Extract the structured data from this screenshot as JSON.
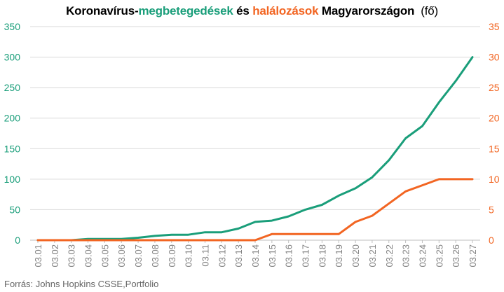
{
  "title": {
    "part1": "Koronavírus-",
    "part2": "megbetegedések",
    "part3": " és ",
    "part4": "halálozások",
    "part5": " Magyarországon",
    "unit": "(fő)"
  },
  "source": "Forrás: Johns Hopkins CSSE,Portfolio",
  "chart_data": {
    "type": "line",
    "categories": [
      "03.01",
      "03.02",
      "03.03",
      "03.04",
      "03.05",
      "03.06",
      "03.07",
      "03.08",
      "03.09",
      "03.10",
      "03.11",
      "03.12",
      "03.13",
      "03.14",
      "03.15",
      "03.16",
      "03.17",
      "03.18",
      "03.19",
      "03.20",
      "03.21",
      "03.22",
      "03.23",
      "03.24",
      "03.25",
      "03.26",
      "03.27"
    ],
    "axes": {
      "left": {
        "ticks": [
          0,
          50,
          100,
          150,
          200,
          250,
          300,
          350
        ],
        "range": [
          0,
          350
        ],
        "color": "#1a9e7a"
      },
      "right": {
        "ticks": [
          0,
          5,
          10,
          15,
          20,
          25,
          30,
          35
        ],
        "range": [
          0,
          35
        ],
        "color": "#f26522"
      }
    },
    "series": [
      {
        "name": "megbetegedések",
        "axis": "left",
        "color": "#1a9e7a",
        "values": [
          0,
          0,
          0,
          2,
          2,
          2,
          4,
          7,
          9,
          9,
          13,
          13,
          19,
          30,
          32,
          39,
          50,
          58,
          73,
          85,
          103,
          131,
          167,
          187,
          226,
          261,
          300
        ]
      },
      {
        "name": "halálozások",
        "axis": "right",
        "color": "#f26522",
        "values": [
          0,
          0,
          0,
          0,
          0,
          0,
          0,
          0,
          0,
          0,
          0,
          0,
          0,
          0,
          1,
          1,
          1,
          1,
          1,
          3,
          4,
          6,
          8,
          9,
          10,
          10,
          10
        ]
      }
    ],
    "grid": "horizontal",
    "legend": "none"
  }
}
